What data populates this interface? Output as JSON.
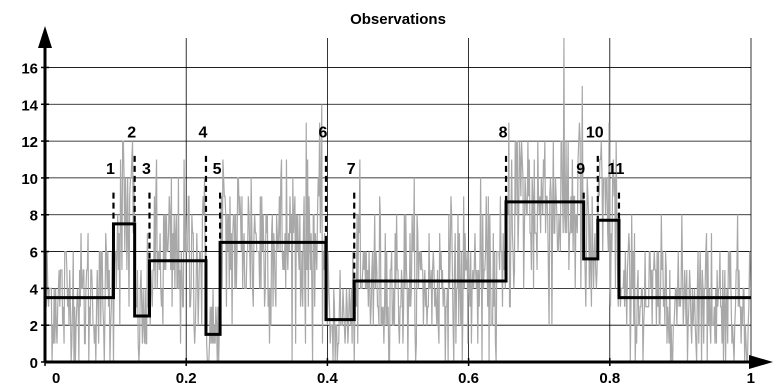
{
  "chart_data": {
    "type": "line",
    "title": "Observations",
    "xlabel": "",
    "ylabel": "",
    "xlim": [
      0,
      1
    ],
    "ylim": [
      0,
      17.6
    ],
    "grid": true,
    "xticks": [
      {
        "value": 0,
        "label": "0"
      },
      {
        "value": 0.2,
        "label": "0.2"
      },
      {
        "value": 0.4,
        "label": "0.4"
      },
      {
        "value": 0.6,
        "label": "0.6"
      },
      {
        "value": 0.8,
        "label": "0.8"
      },
      {
        "value": 1,
        "label": "1"
      }
    ],
    "yticks": [
      {
        "value": 0,
        "label": "0"
      },
      {
        "value": 2,
        "label": "2"
      },
      {
        "value": 4,
        "label": "4"
      },
      {
        "value": 6,
        "label": "6"
      },
      {
        "value": 8,
        "label": "8"
      },
      {
        "value": 10,
        "label": "10"
      },
      {
        "value": 12,
        "label": "12"
      },
      {
        "value": 14,
        "label": "14"
      },
      {
        "value": 16,
        "label": "16"
      }
    ],
    "series": [
      {
        "kind": "noisy-observations",
        "color": "#a8a8a8",
        "segments": [
          {
            "x_start": 0.0,
            "x_end": 0.097,
            "mean": 3.5
          },
          {
            "x_start": 0.097,
            "x_end": 0.127,
            "mean": 7.5
          },
          {
            "x_start": 0.127,
            "x_end": 0.148,
            "mean": 2.5
          },
          {
            "x_start": 0.148,
            "x_end": 0.228,
            "mean": 5.5
          },
          {
            "x_start": 0.228,
            "x_end": 0.248,
            "mean": 1.5
          },
          {
            "x_start": 0.248,
            "x_end": 0.398,
            "mean": 6.5
          },
          {
            "x_start": 0.398,
            "x_end": 0.438,
            "mean": 2.3
          },
          {
            "x_start": 0.438,
            "x_end": 0.653,
            "mean": 4.4
          },
          {
            "x_start": 0.653,
            "x_end": 0.763,
            "mean": 8.7
          },
          {
            "x_start": 0.763,
            "x_end": 0.783,
            "mean": 5.6
          },
          {
            "x_start": 0.783,
            "x_end": 0.813,
            "mean": 7.7
          },
          {
            "x_start": 0.813,
            "x_end": 1.0,
            "mean": 3.5
          }
        ]
      },
      {
        "kind": "piecewise-constant-estimate",
        "color": "#000000",
        "steps": [
          {
            "x_start": 0.0,
            "x_end": 0.097,
            "y": 3.5
          },
          {
            "x_start": 0.097,
            "x_end": 0.127,
            "y": 7.5
          },
          {
            "x_start": 0.127,
            "x_end": 0.148,
            "y": 2.5
          },
          {
            "x_start": 0.148,
            "x_end": 0.228,
            "y": 5.5
          },
          {
            "x_start": 0.228,
            "x_end": 0.248,
            "y": 1.5
          },
          {
            "x_start": 0.248,
            "x_end": 0.398,
            "y": 6.5
          },
          {
            "x_start": 0.398,
            "x_end": 0.438,
            "y": 2.3
          },
          {
            "x_start": 0.438,
            "x_end": 0.653,
            "y": 4.4
          },
          {
            "x_start": 0.653,
            "x_end": 0.763,
            "y": 8.7
          },
          {
            "x_start": 0.763,
            "x_end": 0.783,
            "y": 5.6
          },
          {
            "x_start": 0.783,
            "x_end": 0.813,
            "y": 7.7
          },
          {
            "x_start": 0.813,
            "x_end": 1.0,
            "y": 3.5
          }
        ]
      }
    ],
    "change_points": [
      {
        "label": "1",
        "x": 0.097,
        "line_top_y": 9.2,
        "label_y": 10.2
      },
      {
        "label": "2",
        "x": 0.127,
        "line_top_y": 11.2,
        "label_y": 12.2
      },
      {
        "label": "3",
        "x": 0.148,
        "line_top_y": 9.2,
        "label_y": 10.2
      },
      {
        "label": "4",
        "x": 0.228,
        "line_top_y": 11.2,
        "label_y": 12.2
      },
      {
        "label": "5",
        "x": 0.248,
        "line_top_y": 9.2,
        "label_y": 10.2
      },
      {
        "label": "6",
        "x": 0.398,
        "line_top_y": 11.2,
        "label_y": 12.2
      },
      {
        "label": "7",
        "x": 0.438,
        "line_top_y": 9.2,
        "label_y": 10.2
      },
      {
        "label": "8",
        "x": 0.653,
        "line_top_y": 11.2,
        "label_y": 12.2
      },
      {
        "label": "9",
        "x": 0.763,
        "line_top_y": 9.2,
        "label_y": 10.2
      },
      {
        "label": "10",
        "x": 0.783,
        "line_top_y": 11.2,
        "label_y": 12.2
      },
      {
        "label": "11",
        "x": 0.813,
        "line_top_y": 9.2,
        "label_y": 10.2
      }
    ]
  }
}
